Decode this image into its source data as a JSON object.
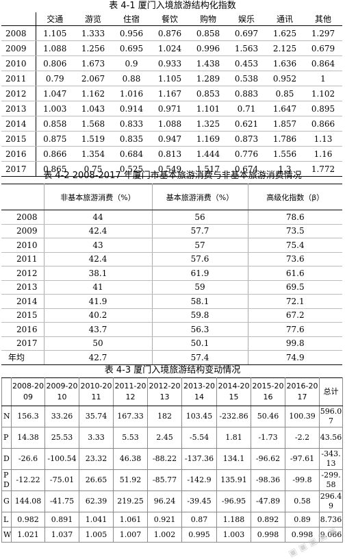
{
  "table1": {
    "caption": "表 4-1  厦门入境旅游结构化指数",
    "headers": [
      "",
      "交通",
      "游览",
      "住宿",
      "餐饮",
      "购物",
      "娱乐",
      "通讯",
      "其他"
    ],
    "rows": [
      [
        "2008",
        "1.105",
        "1.333",
        "0.956",
        "0.876",
        "0.858",
        "0.697",
        "1.625",
        "1.297"
      ],
      [
        "2009",
        "1.088",
        "1.256",
        "0.695",
        "1.024",
        "0.996",
        "1.563",
        "2.125",
        "0.679"
      ],
      [
        "2010",
        "0.806",
        "1.673",
        "0.9",
        "0.933",
        "1.438",
        "0.453",
        "1.636",
        "0.864"
      ],
      [
        "2011",
        "0.79",
        "2.067",
        "0.88",
        "1.105",
        "1.289",
        "0.538",
        "0.952",
        "1"
      ],
      [
        "2012",
        "1.047",
        "1.162",
        "1.016",
        "1.167",
        "0.853",
        "0.883",
        "0.85",
        "1.102"
      ],
      [
        "2013",
        "1.003",
        "1.043",
        "0.914",
        "0.971",
        "1.101",
        "0.71",
        "1.647",
        "0.895"
      ],
      [
        "2014",
        "0.858",
        "1.568",
        "0.833",
        "1.088",
        "1.325",
        "0.621",
        "1.857",
        "0.866"
      ],
      [
        "2015",
        "0.875",
        "1.519",
        "0.835",
        "0.947",
        "1.169",
        "0.873",
        "1.786",
        "1.13"
      ],
      [
        "2016",
        "0.866",
        "1.354",
        "0.684",
        "0.813",
        "1.444",
        "0.776",
        "1.556",
        "1.16"
      ],
      [
        "2017",
        "0.865",
        "0.75",
        "0.525",
        "0.549",
        "1.517",
        "0.674",
        "1.3",
        "1.772"
      ]
    ]
  },
  "table2": {
    "caption": "表 4-2 2008-2017 年厦门市基本旅游消费与非基本旅游消费情况",
    "headers": [
      "",
      "非基本旅游消费（%）",
      "基本旅游消费（%）",
      "高级化指数（β）"
    ],
    "rows": [
      [
        "2008",
        "44",
        "56",
        "78.6"
      ],
      [
        "2009",
        "42.4",
        "57.7",
        "73.5"
      ],
      [
        "2010",
        "43",
        "57",
        "75.4"
      ],
      [
        "2011",
        "42.4",
        "57.6",
        "73.6"
      ],
      [
        "2012",
        "38.1",
        "61.9",
        "61.6"
      ],
      [
        "2013",
        "41",
        "59",
        "69.5"
      ],
      [
        "2014",
        "41.9",
        "58.1",
        "72.1"
      ],
      [
        "2015",
        "40.2",
        "59.8",
        "67.2"
      ],
      [
        "2016",
        "43.7",
        "56.3",
        "77.6"
      ],
      [
        "2017",
        "50",
        "50.1",
        "99.8"
      ]
    ],
    "avg_row": [
      "年均",
      "42.7",
      "57.4",
      "74.9"
    ]
  },
  "table3": {
    "caption": "表 4-3  厦门入境旅游结构变动情况",
    "headers": [
      "",
      "2008-20\n09",
      "2009-20\n10",
      "2010-20\n11",
      "2011-20\n12",
      "2012-20\n13",
      "2013-20\n14",
      "2014-20\n15",
      "2015-20\n16",
      "2016-20\n17",
      "总计"
    ],
    "rows": [
      [
        "N",
        "156.3",
        "33.26",
        "35.74",
        "167.33",
        "182",
        "103.45",
        "-232.86",
        "50.46",
        "100.39",
        "596.0\n7"
      ],
      [
        "P",
        "14.38",
        "25.53",
        "3.33",
        "5.53",
        "2.45",
        "-5.54",
        "1.81",
        "-1.73",
        "-2.2",
        "43.56"
      ],
      [
        "D",
        "-26.6",
        "-100.54",
        "23.32",
        "46.38",
        "-88.22",
        "-137.36",
        "134.1",
        "-96.62",
        "-97.61",
        "-343.\n13"
      ],
      [
        "P\nD",
        "-12.22",
        "-75.01",
        "26.65",
        "51.92",
        "-85.77",
        "-142.9",
        "135.91",
        "-98.36",
        "-99.8",
        "-299.\n58"
      ],
      [
        "G",
        "144.08",
        "-41.75",
        "62.39",
        "219.25",
        "96.24",
        "-39.45",
        "-96.95",
        "-47.89",
        "0.58",
        "296.4\n9"
      ],
      [
        "L",
        "0.982",
        "0.891",
        "1.041",
        "1.061",
        "0.921",
        "0.87",
        "1.188",
        "0.892",
        "0.89",
        "8.736"
      ],
      [
        "W",
        "1.021",
        "1.037",
        "1.005",
        "1.007",
        "1.002",
        "0.995",
        "1.003",
        "0.998",
        "0.998",
        "9.066"
      ]
    ]
  }
}
